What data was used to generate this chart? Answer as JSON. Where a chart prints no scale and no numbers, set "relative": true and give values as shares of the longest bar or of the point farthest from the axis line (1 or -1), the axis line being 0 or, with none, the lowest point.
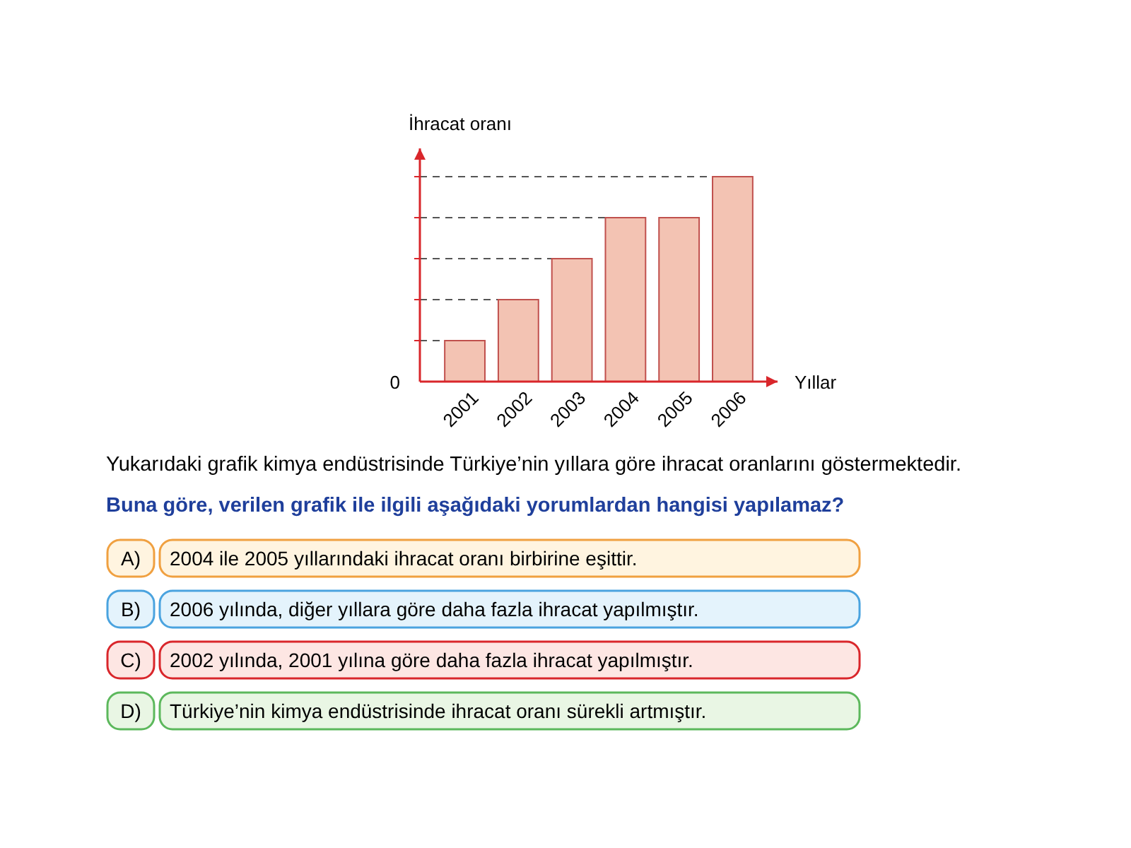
{
  "chart_data": {
    "type": "bar",
    "relative": true,
    "ylabel": "İhracat oranı",
    "xlabel": "Yıllar",
    "categories": [
      "2001",
      "2002",
      "2003",
      "2004",
      "2005",
      "2006"
    ],
    "values": [
      0.2,
      0.4,
      0.6,
      0.8,
      0.8,
      1
    ],
    "color": "#f3c3b3",
    "ref_lines": [
      {
        "axis": "y",
        "value": 0.2,
        "color": "#555555",
        "line_style": "dashed"
      },
      {
        "axis": "y",
        "value": 0.4,
        "color": "#555555",
        "line_style": "dashed"
      },
      {
        "axis": "y",
        "value": 0.6,
        "color": "#555555",
        "line_style": "dashed"
      },
      {
        "axis": "y",
        "value": 0.8,
        "color": "#555555",
        "line_style": "dashed"
      },
      {
        "axis": "y",
        "value": 1,
        "color": "#555555",
        "line_style": "dashed"
      }
    ],
    "annotations": [
      "0",
      "Yukarıdaki grafik kimya endüstrisinde Türkiye’nin yıllara göre ihracat oranlarını göstermektedir.",
      "Buna göre, verilen grafik ile ilgili aşağıdaki yorumlardan hangisi yapılamaz?",
      "A)",
      "2004 ile 2005 yıllarındaki ihracat oranı birbirine eşittir.",
      "B)",
      "2006 yılında, diğer yıllara göre daha fazla ihracat yapılmıştır.",
      "C)",
      "2002 yılında, 2001 yılına göre daha fazla ihracat yapılmıştır.",
      "D)",
      "Türkiye’nin kimya endüstrisinde ihracat oranı sürekli artmıştır."
    ]
  }
}
